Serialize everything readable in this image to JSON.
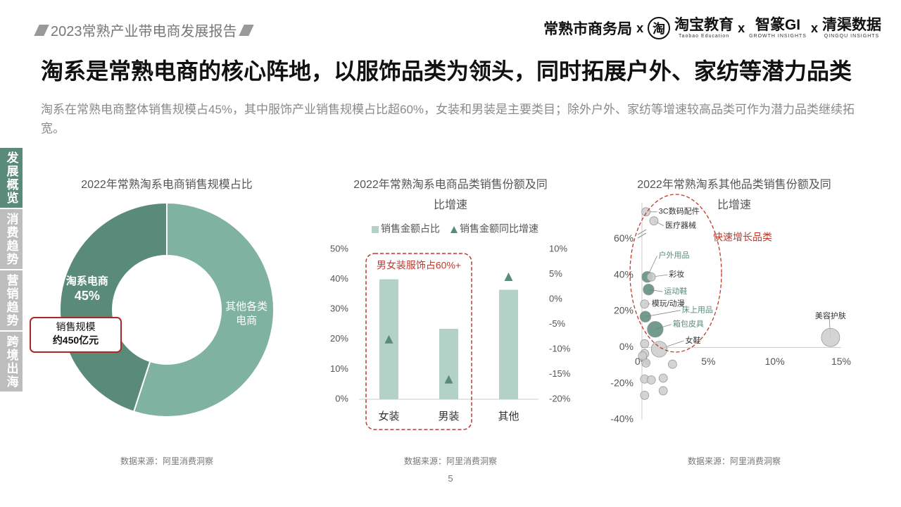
{
  "header": {
    "report": "2023常熟产业带电商发展报告",
    "separator": "x",
    "partners": [
      "常熟市商务局",
      "淘宝教育",
      "智篆GI",
      "清渠数据"
    ],
    "logo_char": "淘",
    "partner_subs": [
      "Taobao Education",
      "GROWTH INSIGHTS",
      "QINGQU INSIGHTS"
    ]
  },
  "title": "淘系是常熟电商的核心阵地，以服饰品类为领头，同时拓展户外、家纺等潜力品类",
  "subtitle": "淘系在常熟电商整体销售规模占45%，其中服饰产业销售规模占比超60%，女装和男装是主要类目；除外户外、家纺等增速较高品类可作为潜力品类继续拓宽。",
  "sidebar": {
    "items": [
      "发展概览",
      "消费趋势",
      "营销趋势",
      "跨境出海"
    ],
    "active": 0
  },
  "page_number": 5,
  "chart_data": [
    {
      "type": "donut",
      "title": "2022年常熟淘系电商销售规模占比",
      "categories": [
        "淘系电商",
        "其他各类电商"
      ],
      "values": [
        45,
        55
      ],
      "value_labels": [
        "45%",
        null
      ],
      "colors": [
        "#5a8a79",
        "#7fb2a0"
      ],
      "callout": [
        "销售规模",
        "约450亿元"
      ],
      "source": "数据来源：阿里消费洞察"
    },
    {
      "type": "bar",
      "title": "2022年常熟淘系电商品类销售份额及同比增速",
      "categories": [
        "女装",
        "男装",
        "其他"
      ],
      "series": [
        {
          "name": "销售金额占比",
          "color": "#b3d1c6",
          "values": [
            40,
            23.5,
            36.5
          ]
        },
        {
          "name": "销售金额同比增速",
          "color": "#5a8a79",
          "axis": "y2",
          "values": [
            -8,
            -16,
            4.5
          ]
        }
      ],
      "ylim": [
        0,
        50
      ],
      "yticks": [
        {
          "value": 0,
          "label": "0%"
        },
        {
          "value": 10,
          "label": "10%"
        },
        {
          "value": 20,
          "label": "20%"
        },
        {
          "value": 30,
          "label": "30%"
        },
        {
          "value": 40,
          "label": "40%"
        },
        {
          "value": 50,
          "label": "50%"
        }
      ],
      "y2lim": [
        -20,
        10
      ],
      "y2ticks": [
        {
          "value": -20,
          "label": "-20%"
        },
        {
          "value": -15,
          "label": "-15%"
        },
        {
          "value": -10,
          "label": "-10%"
        },
        {
          "value": -5,
          "label": "-5%"
        },
        {
          "value": 0,
          "label": "0%"
        },
        {
          "value": 5,
          "label": "5%"
        },
        {
          "value": 10,
          "label": "10%"
        }
      ],
      "annotation": "男女装服饰占60%+",
      "source": "数据来源：阿里消费洞察"
    },
    {
      "type": "scatter",
      "title": "2022年常熟淘系其他品类销售份额及同比增速",
      "categories": [
        "3C数码配件",
        "医疗器械",
        "户外用品",
        "彩妆",
        "运动鞋",
        "模玩/动漫",
        "床上用品",
        "箱包皮具",
        "女鞋",
        "美容护肤",
        null,
        null,
        null,
        null,
        null,
        null,
        null,
        null,
        null,
        null
      ],
      "x": [
        0.3,
        0.9,
        0.4,
        0.7,
        0.5,
        0.2,
        0.26,
        1.0,
        1.3,
        14.2,
        0.2,
        0.2,
        0.3,
        2.3,
        0.2,
        0.7,
        1.6,
        1.6,
        0.2,
        0.05
      ],
      "values": [
        75,
        70,
        39,
        39,
        32,
        24,
        17,
        10,
        -1,
        5.5,
        2,
        -3.5,
        -8.6,
        -9.3,
        -17.5,
        -18,
        -17,
        -24,
        -26.5,
        -4.7
      ],
      "sizes": [
        1,
        1,
        1.5,
        1,
        1.5,
        1,
        1.5,
        2.5,
        2.5,
        3,
        1,
        1,
        1,
        1,
        1,
        1,
        1,
        1,
        1,
        1
      ],
      "colors": [
        "#cccccc",
        "#cccccc",
        "#5a8a79",
        "#cccccc",
        "#5a8a79",
        "#cccccc",
        "#5a8a79",
        "#5a8a79",
        "#cccccc",
        "#cccccc",
        "#cccccc",
        "#cccccc",
        "#cccccc",
        "#cccccc",
        "#cccccc",
        "#cccccc",
        "#cccccc",
        "#cccccc",
        "#cccccc",
        "#cccccc"
      ],
      "xlim": [
        -0.37,
        15
      ],
      "xticks": [
        {
          "value": 0,
          "label": "0%"
        },
        {
          "value": 5,
          "label": "5%"
        },
        {
          "value": 10,
          "label": "10%"
        },
        {
          "value": 15,
          "label": "15%"
        }
      ],
      "ylim": [
        -40,
        80
      ],
      "yticks": [
        {
          "value": -40,
          "label": "-40%"
        },
        {
          "value": -20,
          "label": "-20%"
        },
        {
          "value": 0,
          "label": "0%"
        },
        {
          "value": 20,
          "label": "20%"
        },
        {
          "value": 40,
          "label": "40%"
        },
        {
          "value": 60,
          "label": "60%"
        }
      ],
      "annotation": "快速增长品类",
      "source": "数据来源：阿里消费洞察"
    }
  ]
}
